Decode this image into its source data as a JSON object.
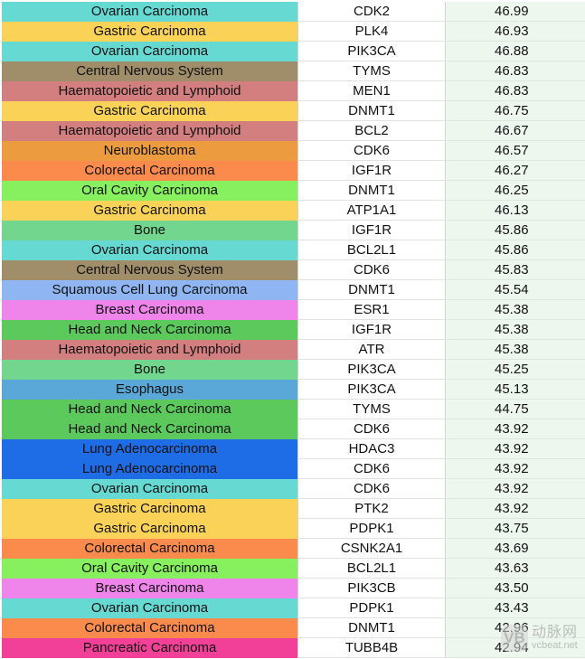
{
  "rows": [
    {
      "type": "Ovarian Carcinoma",
      "gene": "CDK2",
      "score": "46.99",
      "color": "#66d9d2"
    },
    {
      "type": "Gastric Carcinoma",
      "gene": "PLK4",
      "score": "46.93",
      "color": "#f9d257"
    },
    {
      "type": "Ovarian Carcinoma",
      "gene": "PIK3CA",
      "score": "46.88",
      "color": "#66d9d2"
    },
    {
      "type": "Central Nervous System",
      "gene": "TYMS",
      "score": "46.83",
      "color": "#a08e6a"
    },
    {
      "type": "Haematopoietic and Lymphoid",
      "gene": "MEN1",
      "score": "46.83",
      "color": "#d37f80"
    },
    {
      "type": "Gastric Carcinoma",
      "gene": "DNMT1",
      "score": "46.75",
      "color": "#f9d257"
    },
    {
      "type": "Haematopoietic and Lymphoid",
      "gene": "BCL2",
      "score": "46.67",
      "color": "#d37f80"
    },
    {
      "type": "Neuroblastoma",
      "gene": "CDK6",
      "score": "46.57",
      "color": "#ec9c3f"
    },
    {
      "type": "Colorectal Carcinoma",
      "gene": "IGF1R",
      "score": "46.27",
      "color": "#fb8a4d"
    },
    {
      "type": "Oral Cavity Carcinoma",
      "gene": "DNMT1",
      "score": "46.25",
      "color": "#86f05e"
    },
    {
      "type": "Gastric Carcinoma",
      "gene": "ATP1A1",
      "score": "46.13",
      "color": "#f9d257"
    },
    {
      "type": "Bone",
      "gene": "IGF1R",
      "score": "45.86",
      "color": "#72d68e"
    },
    {
      "type": "Ovarian Carcinoma",
      "gene": "BCL2L1",
      "score": "45.86",
      "color": "#66d9d2"
    },
    {
      "type": "Central Nervous System",
      "gene": "CDK6",
      "score": "45.83",
      "color": "#a08e6a"
    },
    {
      "type": "Squamous Cell Lung Carcinoma",
      "gene": "DNMT1",
      "score": "45.54",
      "color": "#8fb6f3"
    },
    {
      "type": "Breast Carcinoma",
      "gene": "ESR1",
      "score": "45.38",
      "color": "#ef84ea"
    },
    {
      "type": "Head and Neck Carcinoma",
      "gene": "IGF1R",
      "score": "45.38",
      "color": "#5cc95c"
    },
    {
      "type": "Haematopoietic and Lymphoid",
      "gene": "ATR",
      "score": "45.38",
      "color": "#d37f80"
    },
    {
      "type": "Bone",
      "gene": "PIK3CA",
      "score": "45.25",
      "color": "#72d68e"
    },
    {
      "type": "Esophagus",
      "gene": "PIK3CA",
      "score": "45.13",
      "color": "#5aa8d8"
    },
    {
      "type": "Head and Neck Carcinoma",
      "gene": "TYMS",
      "score": "44.75",
      "color": "#5cc95c"
    },
    {
      "type": "Head and Neck Carcinoma",
      "gene": "CDK6",
      "score": "43.92",
      "color": "#5cc95c"
    },
    {
      "type": "Lung Adenocarcinoma",
      "gene": "HDAC3",
      "score": "43.92",
      "color": "#1e6de6"
    },
    {
      "type": "Lung Adenocarcinoma",
      "gene": "CDK6",
      "score": "43.92",
      "color": "#1e6de6"
    },
    {
      "type": "Ovarian Carcinoma",
      "gene": "CDK6",
      "score": "43.92",
      "color": "#66d9d2"
    },
    {
      "type": "Gastric Carcinoma",
      "gene": "PTK2",
      "score": "43.92",
      "color": "#f9d257"
    },
    {
      "type": "Gastric Carcinoma",
      "gene": "PDPK1",
      "score": "43.75",
      "color": "#f9d257"
    },
    {
      "type": "Colorectal Carcinoma",
      "gene": "CSNK2A1",
      "score": "43.69",
      "color": "#fb8a4d"
    },
    {
      "type": "Oral Cavity Carcinoma",
      "gene": "BCL2L1",
      "score": "43.63",
      "color": "#86f05e"
    },
    {
      "type": "Breast Carcinoma",
      "gene": "PIK3CB",
      "score": "43.50",
      "color": "#ef84ea"
    },
    {
      "type": "Ovarian Carcinoma",
      "gene": "PDPK1",
      "score": "43.43",
      "color": "#66d9d2"
    },
    {
      "type": "Colorectal Carcinoma",
      "gene": "DNMT1",
      "score": "42.96",
      "color": "#fb8a4d"
    },
    {
      "type": "Pancreatic Carcinoma",
      "gene": "TUBB4B",
      "score": "42.94",
      "color": "#f23f98"
    }
  ],
  "watermark": {
    "chinese": "动脉网",
    "url": "vcbeat.net",
    "logo_icon": "vb-logo-icon"
  }
}
